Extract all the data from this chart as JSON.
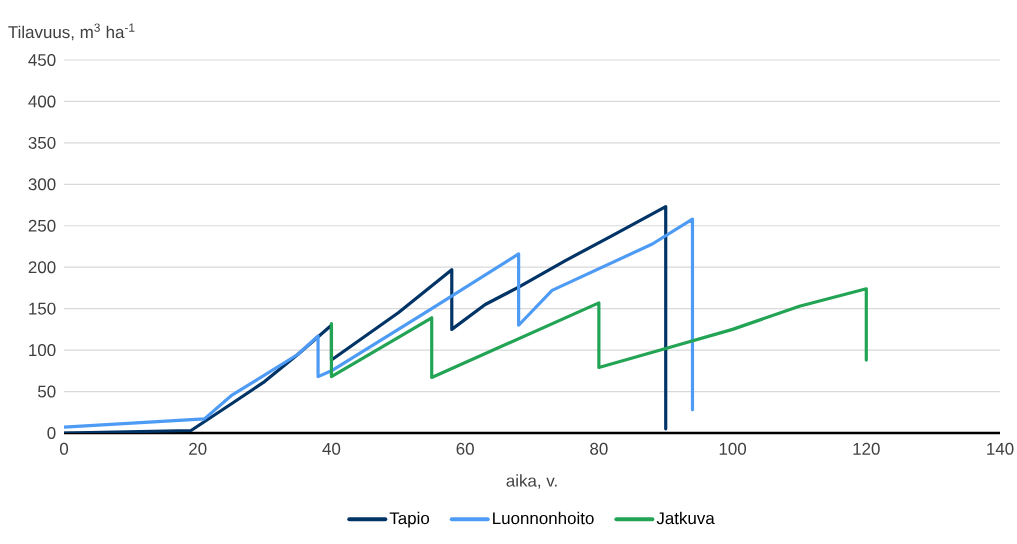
{
  "chart_data": {
    "type": "line",
    "xlabel": "aika, v.",
    "ylabel": "Tilavuus, m$^{3}$ ha$^{-1}$",
    "xlim": [
      0,
      140
    ],
    "ylim": [
      0,
      450
    ],
    "xticks": [
      0,
      20,
      40,
      60,
      80,
      100,
      120,
      140
    ],
    "yticks": [
      0,
      50,
      100,
      150,
      200,
      250,
      300,
      350,
      400,
      450
    ],
    "grid": "y",
    "legend": "bottom",
    "line_style": "solid",
    "marker": "none",
    "series": [
      {
        "name": "Tapio",
        "color": "#003366",
        "x": [
          0,
          19,
          25,
          30,
          35,
          40,
          40,
          50,
          58,
          58,
          63,
          68,
          75,
          82,
          90,
          90
        ],
        "values": [
          0,
          3,
          35,
          62,
          95,
          130,
          88,
          145,
          197,
          125,
          155,
          176,
          208,
          238,
          273,
          5
        ]
      },
      {
        "name": "Luonnonhoito",
        "color": "#4d9bf5",
        "x": [
          0,
          21,
          25,
          30,
          35,
          38,
          38,
          40,
          55,
          68,
          68,
          73,
          88,
          94,
          94
        ],
        "values": [
          7,
          17,
          45,
          70,
          95,
          117,
          68,
          75,
          150,
          216,
          130,
          172,
          228,
          258,
          28
        ]
      },
      {
        "name": "Jatkuva",
        "color": "#23a455",
        "x": [
          40,
          40,
          55,
          55,
          80,
          80,
          90,
          100,
          110,
          120,
          120
        ],
        "values": [
          132,
          68,
          139,
          67,
          157,
          79,
          102,
          125,
          153,
          174,
          88
        ]
      }
    ]
  }
}
